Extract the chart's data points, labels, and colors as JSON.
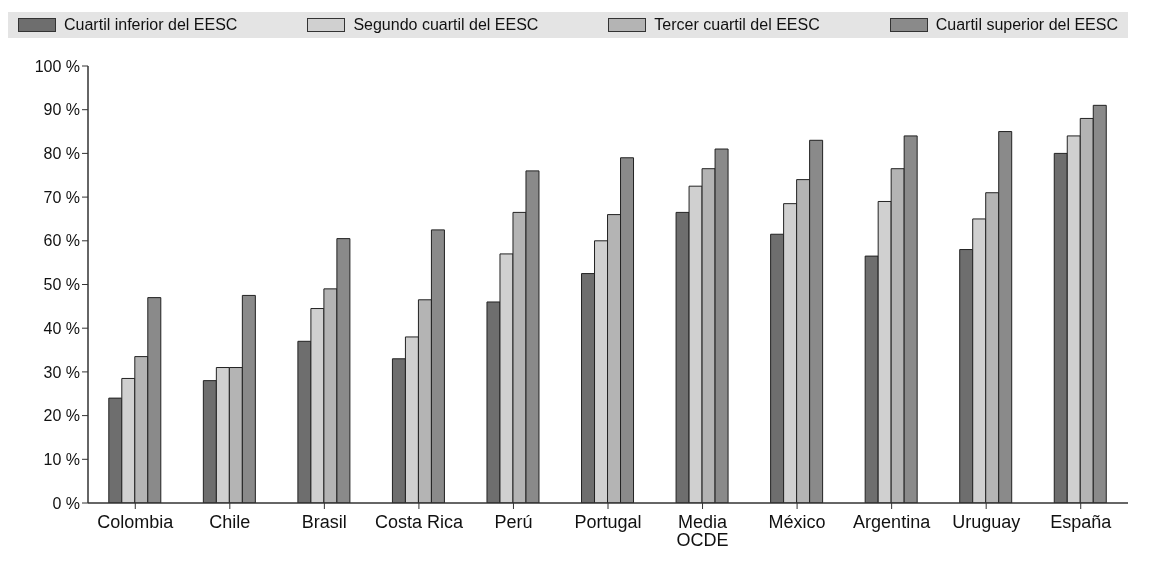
{
  "chart_data": {
    "type": "bar",
    "categories": [
      "Colombia",
      "Chile",
      "Brasil",
      "Costa Rica",
      "Perú",
      "Portugal",
      "Media OCDE",
      "México",
      "Argentina",
      "Uruguay",
      "España"
    ],
    "series": [
      {
        "name": "Cuartil inferior del EESC",
        "color": "#6e6e6e",
        "values": [
          24,
          28,
          37,
          33,
          46,
          52.5,
          66.5,
          61.5,
          56.5,
          58,
          80
        ]
      },
      {
        "name": "Segundo cuartil del EESC",
        "color": "#d0d0d0",
        "values": [
          28.5,
          31,
          44.5,
          38,
          57,
          60,
          72.5,
          68.5,
          69,
          65,
          84
        ]
      },
      {
        "name": "Tercer cuartil del EESC",
        "color": "#b4b4b4",
        "values": [
          33.5,
          31,
          49,
          46.5,
          66.5,
          66,
          76.5,
          74,
          76.5,
          71,
          88
        ]
      },
      {
        "name": "Cuartil superior del EESC",
        "color": "#8a8a8a",
        "values": [
          47,
          47.5,
          60.5,
          62.5,
          76,
          79,
          81,
          83,
          84,
          85,
          91
        ]
      }
    ],
    "ylim": [
      0,
      100
    ],
    "yticks": [
      {
        "value": 0,
        "label": "0 %"
      },
      {
        "value": 10,
        "label": "10 %"
      },
      {
        "value": 20,
        "label": "20 %"
      },
      {
        "value": 30,
        "label": "30 %"
      },
      {
        "value": 40,
        "label": "40 %"
      },
      {
        "value": 50,
        "label": "50 %"
      },
      {
        "value": 60,
        "label": "60 %"
      },
      {
        "value": 70,
        "label": "70 %"
      },
      {
        "value": 80,
        "label": "80 %"
      },
      {
        "value": 90,
        "label": "90 %"
      },
      {
        "value": 100,
        "label": "100 %"
      }
    ],
    "grid": false,
    "legend": "top"
  }
}
